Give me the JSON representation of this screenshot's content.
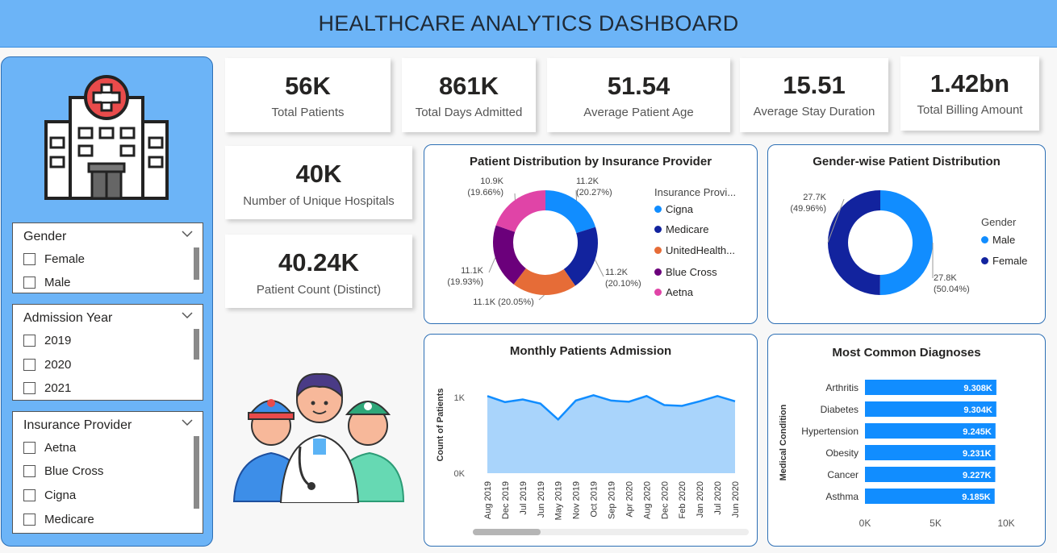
{
  "header": {
    "title": "HEALTHCARE ANALYTICS DASHBOARD"
  },
  "slicers": {
    "gender": {
      "title": "Gender",
      "items": [
        "Female",
        "Male"
      ]
    },
    "admission_year": {
      "title": "Admission Year",
      "items": [
        "2019",
        "2020",
        "2021"
      ]
    },
    "insurance": {
      "title": "Insurance Provider",
      "items": [
        "Aetna",
        "Blue Cross",
        "Cigna",
        "Medicare"
      ]
    }
  },
  "kpis": {
    "total_patients": {
      "value": "56K",
      "label": "Total Patients"
    },
    "total_days": {
      "value": "861K",
      "label": "Total Days Admitted"
    },
    "avg_age": {
      "value": "51.54",
      "label": "Average Patient Age"
    },
    "avg_stay": {
      "value": "15.51",
      "label": "Average Stay Duration"
    },
    "total_billing": {
      "value": "1.42bn",
      "label": "Total Billing Amount"
    },
    "unique_hospitals": {
      "value": "40K",
      "label": "Number of Unique Hospitals"
    },
    "patient_count": {
      "value": "40.24K",
      "label": "Patient Count (Distinct)"
    }
  },
  "colors": {
    "header": "#6cb4f7",
    "bar": "#118dff",
    "area": "#a9d4fb",
    "line": "#118dff"
  },
  "chart_data": [
    {
      "type": "pie",
      "title": "Patient Distribution by Insurance Provider",
      "legend_title": "Insurance Provi...",
      "categories": [
        "Cigna",
        "Medicare",
        "UnitedHealth...",
        "Blue Cross",
        "Aetna"
      ],
      "values": [
        11.2,
        11.2,
        11.1,
        11.1,
        10.9
      ],
      "percents": [
        20.27,
        20.1,
        20.05,
        19.93,
        19.66
      ],
      "data_labels": [
        "11.2K",
        "11.2K",
        "11.1K (20.05%)",
        "11.1K",
        "10.9K"
      ],
      "percent_labels": [
        "(20.27%)",
        "(20.10%)",
        "",
        "(19.93%)",
        "(19.66%)"
      ],
      "colors": [
        "#118dff",
        "#12239e",
        "#e66c37",
        "#6b007b",
        "#e044a7"
      ]
    },
    {
      "type": "pie",
      "title": "Gender-wise Patient Distribution",
      "legend_title": "Gender",
      "categories": [
        "Male",
        "Female"
      ],
      "values": [
        27.8,
        27.7
      ],
      "percents": [
        50.04,
        49.96
      ],
      "data_labels": [
        "27.8K",
        "27.7K"
      ],
      "percent_labels": [
        "(50.04%)",
        "(49.96%)"
      ],
      "colors": [
        "#118dff",
        "#12239e"
      ]
    },
    {
      "type": "area",
      "title": "Monthly Patients Admission",
      "ylabel": "Count of Patients",
      "y_ticks": [
        "0K",
        "1K"
      ],
      "ylim": [
        0,
        1300
      ],
      "x_ticks": [
        "Aug 2019",
        "Dec 2019",
        "Jul 2019",
        "Jun 2019",
        "May 2019",
        "Nov 2019",
        "Oct 2019",
        "Sep 2019",
        "Apr 2020",
        "Aug 2020",
        "Dec 2020",
        "Feb 2020",
        "Jan 2020",
        "Jul 2020",
        "Jun 2020"
      ],
      "values": [
        1020,
        940,
        975,
        920,
        710,
        960,
        1030,
        960,
        945,
        1020,
        900,
        890,
        950,
        1020,
        950
      ]
    },
    {
      "type": "bar",
      "orientation": "horizontal",
      "title": "Most Common Diagnoses",
      "ylabel": "Medical Condition",
      "categories": [
        "Arthritis",
        "Diabetes",
        "Hypertension",
        "Obesity",
        "Cancer",
        "Asthma"
      ],
      "values": [
        9308,
        9304,
        9245,
        9231,
        9227,
        9185
      ],
      "data_labels": [
        "9.308K",
        "9.304K",
        "9.245K",
        "9.231K",
        "9.227K",
        "9.185K"
      ],
      "x_ticks": [
        "0K",
        "5K",
        "10K"
      ],
      "xlim": [
        0,
        10000
      ]
    }
  ]
}
